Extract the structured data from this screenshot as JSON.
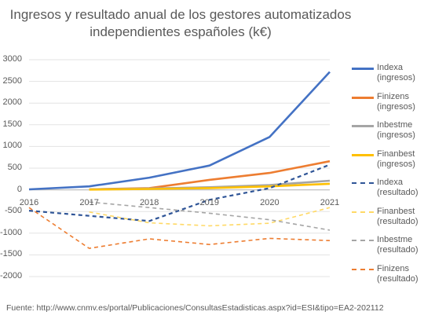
{
  "chart_data": {
    "type": "line",
    "title": "Ingresos y resultado anual de los gestores automatizados independientes españoles (k€)",
    "title_lines": [
      "Ingresos y resultado anual de los gestores automatizados",
      "independientes españoles (k€)"
    ],
    "xlabel": "",
    "ylabel": "",
    "x": [
      "2016",
      "2017",
      "2018",
      "2019",
      "2020",
      "2021"
    ],
    "yticks": [
      "3000",
      "2500",
      "2000",
      "1500",
      "1000",
      "500",
      "0",
      "-500",
      "-1000",
      "-1500",
      "-2000"
    ],
    "ylim": [
      -2000,
      3000
    ],
    "grid": true,
    "legend_position": "right",
    "series": [
      {
        "name": "Indexa (ingresos)",
        "legend_lines": [
          "Indexa",
          "(ingresos)"
        ],
        "color": "#4472c4",
        "style": "solid",
        "values": [
          10,
          80,
          280,
          560,
          1220,
          2720
        ]
      },
      {
        "name": "Finizens (ingresos)",
        "legend_lines": [
          "Finizens",
          "(ingresos)"
        ],
        "color": "#ed7d31",
        "style": "solid",
        "values": [
          null,
          10,
          40,
          230,
          390,
          660
        ]
      },
      {
        "name": "Inbestme (ingresos)",
        "legend_lines": [
          "Inbestme",
          "(ingresos)"
        ],
        "color": "#a5a5a5",
        "style": "solid",
        "values": [
          null,
          10,
          30,
          60,
          110,
          210
        ]
      },
      {
        "name": "Finanbest (ingresos)",
        "legend_lines": [
          "Finanbest",
          "(ingresos)"
        ],
        "color": "#ffc000",
        "style": "solid",
        "values": [
          null,
          5,
          20,
          40,
          80,
          140
        ]
      },
      {
        "name": "Indexa (resultado)",
        "legend_lines": [
          "Indexa",
          "(resultado)"
        ],
        "color": "#2f5597",
        "style": "dashed",
        "values": [
          -480,
          -600,
          -720,
          -230,
          40,
          580
        ]
      },
      {
        "name": "Finanbest (resultado)",
        "legend_lines": [
          "Finanbest",
          "(resultado)"
        ],
        "color": "#ffd966",
        "style": "dashed",
        "values": [
          null,
          -510,
          -760,
          -830,
          -770,
          -410
        ]
      },
      {
        "name": "Inbestme (resultado)",
        "legend_lines": [
          "Inbestme",
          "(resultado)"
        ],
        "color": "#a5a5a5",
        "style": "dashed",
        "values": [
          null,
          -280,
          -410,
          -540,
          -690,
          -930
        ]
      },
      {
        "name": "Finizens (resultado)",
        "legend_lines": [
          "Finizens",
          "(resultado)"
        ],
        "color": "#ed7d31",
        "style": "dashed",
        "values": [
          -410,
          -1350,
          -1130,
          -1260,
          -1120,
          -1170
        ]
      }
    ]
  },
  "footer": {
    "source": "Fuente: http://www.cnmv.es/portal/Publicaciones/ConsultasEstadisticas.aspx?id=ESI&tipo=EA2-202112"
  }
}
